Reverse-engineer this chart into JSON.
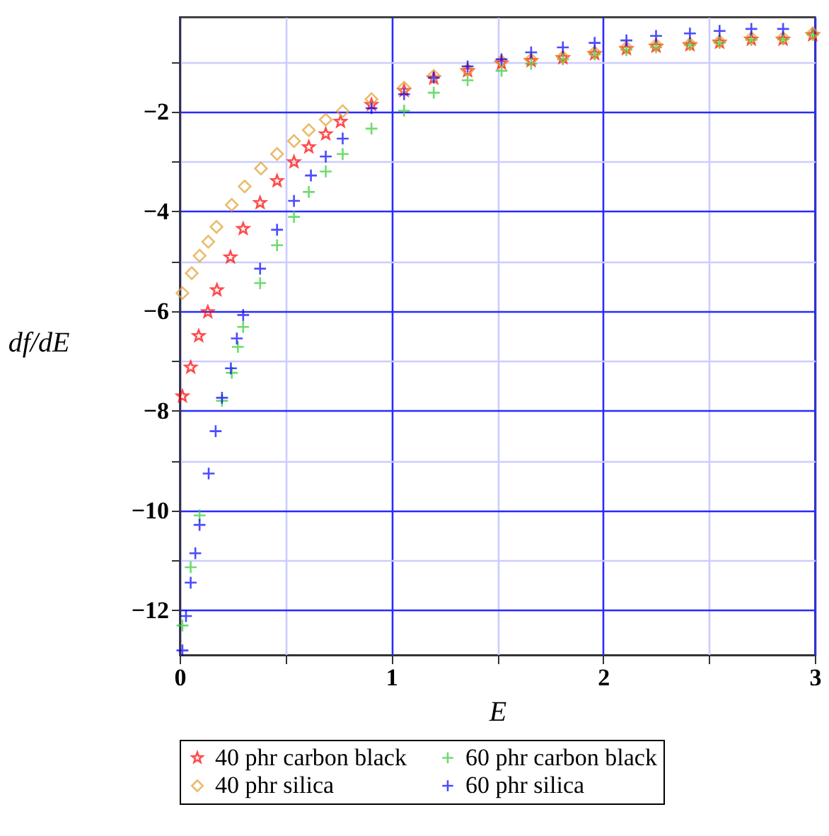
{
  "chart_data": {
    "type": "scatter",
    "xlabel": "E",
    "ylabel": "df/dE",
    "xlim": [
      0,
      3
    ],
    "ylim": [
      -12.9,
      -0.1
    ],
    "xticks": [
      0,
      {
        "value": 0.5,
        "label": null
      },
      1,
      {
        "value": 1.5,
        "label": null
      },
      2,
      {
        "value": 2.5,
        "label": null
      },
      3
    ],
    "yticks": [
      {
        "value": -12,
        "label": "−12"
      },
      {
        "value": -11,
        "label": null
      },
      {
        "value": -10,
        "label": "−10"
      },
      {
        "value": -9,
        "label": null
      },
      {
        "value": -8,
        "label": "−8"
      },
      {
        "value": -7,
        "label": null
      },
      {
        "value": -6,
        "label": "−6"
      },
      {
        "value": -5,
        "label": null
      },
      {
        "value": -4,
        "label": "−4"
      },
      {
        "value": -3,
        "label": null
      },
      {
        "value": -2,
        "label": "−2"
      },
      {
        "value": -1,
        "label": null
      }
    ],
    "grid": true,
    "legend": "bottom",
    "series": [
      {
        "name": "40 phr carbon black",
        "color": "#ff0000",
        "marker": "star",
        "x": [
          0.013,
          0.052,
          0.09,
          0.133,
          0.176,
          0.24,
          0.3,
          0.38,
          0.46,
          0.54,
          0.61,
          0.69,
          0.76,
          0.906,
          1.06,
          1.2,
          1.36,
          1.52,
          1.66,
          1.81,
          1.96,
          2.11,
          2.25,
          2.41,
          2.55,
          2.7,
          2.85,
          2.99
        ],
        "values": [
          -7.71,
          -7.13,
          -6.5,
          -6.02,
          -5.58,
          -4.92,
          -4.35,
          -3.83,
          -3.39,
          -3.01,
          -2.71,
          -2.45,
          -2.2,
          -1.86,
          -1.58,
          -1.33,
          -1.18,
          -1.03,
          -0.98,
          -0.92,
          -0.84,
          -0.74,
          -0.69,
          -0.66,
          -0.61,
          -0.55,
          -0.55,
          -0.46
        ]
      },
      {
        "name": "60 phr carbon black",
        "color": "#33cc33",
        "marker": "cross",
        "x": [
          0.013,
          0.052,
          0.094,
          0.2,
          0.246,
          0.275,
          0.3,
          0.38,
          0.46,
          0.54,
          0.61,
          0.69,
          0.77,
          0.906,
          1.06,
          1.2,
          1.36,
          1.52,
          1.66,
          1.81,
          1.96,
          2.11,
          2.25,
          2.41,
          2.55,
          2.7,
          2.85,
          2.99
        ],
        "values": [
          -12.31,
          -11.14,
          -10.1,
          -7.8,
          -7.24,
          -6.72,
          -6.32,
          -5.44,
          -4.68,
          -4.11,
          -3.61,
          -3.2,
          -2.85,
          -2.34,
          -1.98,
          -1.62,
          -1.37,
          -1.18,
          -1.04,
          -0.95,
          -0.85,
          -0.76,
          -0.71,
          -0.66,
          -0.62,
          -0.56,
          -0.55,
          -0.46
        ]
      },
      {
        "name": "40 phr silica",
        "color": "#e0a030",
        "marker": "diamond",
        "x": [
          0.013,
          0.057,
          0.094,
          0.135,
          0.174,
          0.246,
          0.307,
          0.384,
          0.46,
          0.54,
          0.61,
          0.69,
          0.77,
          0.906,
          1.06,
          1.2,
          1.36,
          1.52,
          1.66,
          1.81,
          1.96,
          2.11,
          2.25,
          2.41,
          2.55,
          2.7,
          2.85,
          2.99
        ],
        "values": [
          -5.64,
          -5.24,
          -4.89,
          -4.61,
          -4.31,
          -3.87,
          -3.5,
          -3.14,
          -2.85,
          -2.59,
          -2.37,
          -2.16,
          -1.99,
          -1.75,
          -1.52,
          -1.28,
          -1.16,
          -0.99,
          -0.95,
          -0.9,
          -0.81,
          -0.71,
          -0.66,
          -0.64,
          -0.59,
          -0.52,
          -0.52,
          -0.43
        ]
      },
      {
        "name": "60 phr silica",
        "color": "#0000ff",
        "marker": "cross",
        "x": [
          0.013,
          0.03,
          0.052,
          0.074,
          0.094,
          0.137,
          0.17,
          0.2,
          0.242,
          0.27,
          0.3,
          0.38,
          0.46,
          0.54,
          0.62,
          0.69,
          0.77,
          0.906,
          1.06,
          1.2,
          1.36,
          1.52,
          1.66,
          1.81,
          1.96,
          2.11,
          2.25,
          2.41,
          2.55,
          2.7,
          2.85
        ],
        "values": [
          -12.81,
          -12.12,
          -11.45,
          -10.86,
          -10.29,
          -9.26,
          -8.41,
          -7.74,
          -7.15,
          -6.55,
          -6.08,
          -5.15,
          -4.37,
          -3.79,
          -3.28,
          -2.9,
          -2.54,
          -1.93,
          -1.65,
          -1.32,
          -1.09,
          -0.95,
          -0.81,
          -0.71,
          -0.62,
          -0.57,
          -0.48,
          -0.43,
          -0.38,
          -0.34,
          -0.34
        ]
      }
    ]
  }
}
